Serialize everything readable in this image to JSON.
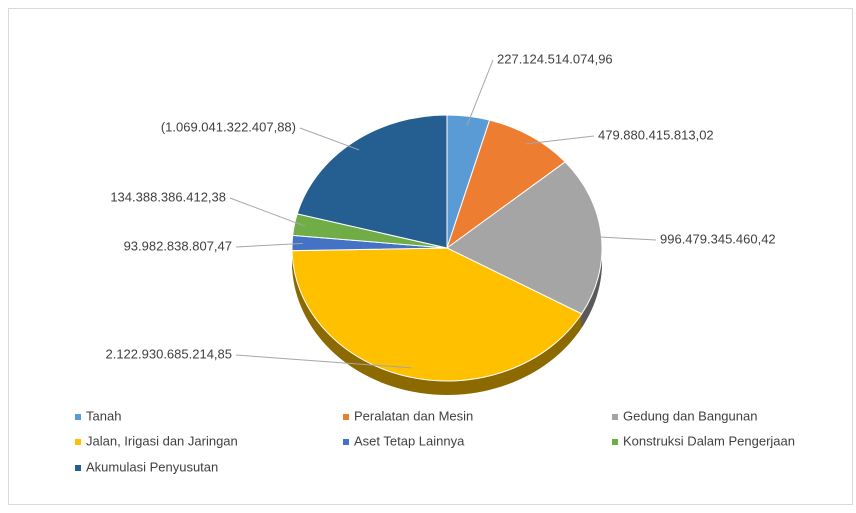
{
  "chart_data": {
    "type": "pie",
    "categories": [
      "Tanah",
      "Peralatan dan Mesin",
      "Gedung dan Bangunan",
      "Jalan, Irigasi dan Jaringan",
      "Aset Tetap Lainnya",
      "Konstruksi Dalam Pengerjaan",
      "Akumulasi Penyusutan"
    ],
    "values": [
      227124514074.96,
      479880415813.02,
      996479345460.42,
      2122930685214.85,
      93982838807.47,
      134388386412.38,
      -1069041322407.88
    ],
    "value_labels": [
      "227.124.514.074,96",
      "479.880.415.813,02",
      "996.479.345.460,42",
      "2.122.930.685.214,85",
      "93.982.838.807,47",
      "134.388.386.412,38",
      "(1.069.041.322.407,88)"
    ],
    "colors": [
      "#5b9bd5",
      "#ed7d31",
      "#a5a5a5",
      "#ffc000",
      "#4472c4",
      "#70ad47",
      "#255e91"
    ],
    "legend": "bottom"
  }
}
